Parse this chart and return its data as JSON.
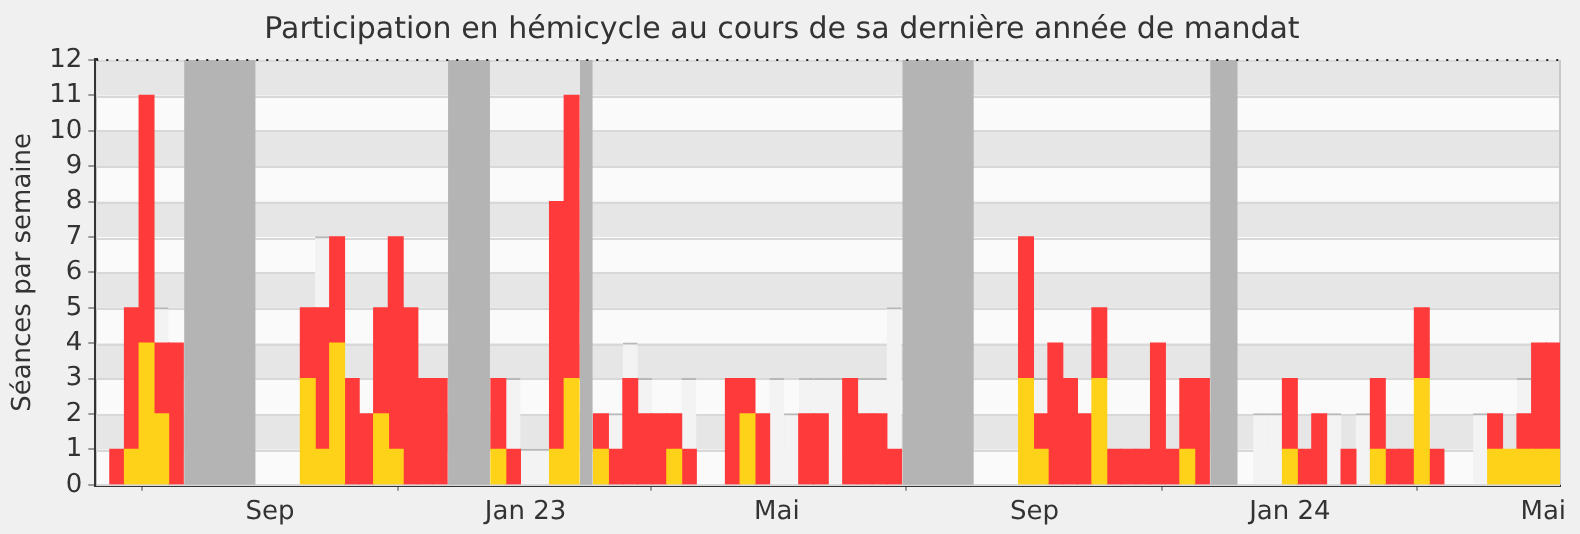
{
  "chart_data": {
    "type": "bar",
    "title": "Participation en hémicycle au cours de sa dernière année de mandat",
    "ylabel": "Séances par semaine",
    "x": [
      "2022-06-20",
      "2022-06-27",
      "2022-07-04",
      "2022-07-11",
      "2022-07-18",
      "2022-09-19",
      "2022-09-26",
      "2022-10-03",
      "2022-10-10",
      "2022-10-17",
      "2022-10-24",
      "2022-10-31",
      "2022-11-07",
      "2022-11-14",
      "2022-11-21",
      "2022-12-19",
      "2022-12-26",
      "2023-01-02",
      "2023-01-09",
      "2023-01-16",
      "2023-01-23",
      "2023-02-06",
      "2023-02-13",
      "2023-02-20",
      "2023-02-27",
      "2023-03-06",
      "2023-03-13",
      "2023-03-20",
      "2023-04-10",
      "2023-04-17",
      "2023-04-24",
      "2023-05-01",
      "2023-05-08",
      "2023-05-15",
      "2023-05-22",
      "2023-05-29",
      "2023-06-05",
      "2023-06-12",
      "2023-06-19",
      "2023-06-26",
      "2023-08-28",
      "2023-09-04",
      "2023-09-11",
      "2023-09-18",
      "2023-09-25",
      "2023-10-02",
      "2023-10-09",
      "2023-10-16",
      "2023-10-23",
      "2023-10-30",
      "2023-11-06",
      "2023-11-13",
      "2023-11-20",
      "2023-12-18",
      "2023-12-25",
      "2024-01-01",
      "2024-01-08",
      "2024-01-15",
      "2024-01-22",
      "2024-01-29",
      "2024-02-05",
      "2024-02-12",
      "2024-02-19",
      "2024-02-26",
      "2024-03-04",
      "2024-03-11",
      "2024-04-01",
      "2024-04-08",
      "2024-04-15",
      "2024-04-22",
      "2024-04-29",
      "2024-05-06"
    ],
    "series": [
      {
        "color": "#ffd21a",
        "values": [
          null,
          1,
          4,
          2,
          null,
          3,
          1,
          4,
          null,
          null,
          2,
          1,
          null,
          null,
          null,
          1,
          null,
          null,
          null,
          1,
          3,
          1,
          null,
          null,
          null,
          null,
          1,
          null,
          null,
          2,
          null,
          null,
          null,
          null,
          null,
          null,
          null,
          null,
          null,
          null,
          3,
          1,
          null,
          null,
          null,
          3,
          null,
          null,
          null,
          null,
          null,
          1,
          null,
          null,
          null,
          1,
          null,
          null,
          null,
          null,
          null,
          1,
          null,
          null,
          3,
          null,
          null,
          1,
          1,
          1,
          1,
          1
        ]
      },
      {
        "color": "#ff3a3a",
        "values": [
          1,
          4,
          7,
          2,
          4,
          2,
          4,
          3,
          3,
          2,
          3,
          6,
          5,
          3,
          3,
          2,
          1,
          null,
          null,
          7,
          8,
          1,
          1,
          3,
          2,
          2,
          1,
          1,
          3,
          1,
          2,
          null,
          null,
          2,
          2,
          null,
          3,
          2,
          2,
          1,
          4,
          1,
          4,
          3,
          2,
          2,
          1,
          1,
          1,
          4,
          1,
          2,
          3,
          null,
          null,
          2,
          1,
          2,
          null,
          1,
          null,
          2,
          1,
          1,
          2,
          1,
          null,
          1,
          null,
          1,
          3,
          3
        ]
      },
      {
        "color": "#f3f3f3",
        "values": [
          null,
          null,
          null,
          1,
          null,
          null,
          2,
          null,
          null,
          null,
          null,
          null,
          null,
          null,
          null,
          null,
          2,
          1,
          1,
          null,
          null,
          null,
          1,
          1,
          1,
          null,
          null,
          2,
          null,
          null,
          null,
          3,
          2,
          1,
          1,
          3,
          null,
          1,
          1,
          4,
          null,
          1,
          null,
          null,
          null,
          null,
          null,
          null,
          null,
          null,
          null,
          null,
          null,
          2,
          2,
          null,
          null,
          null,
          2,
          null,
          2,
          null,
          null,
          null,
          null,
          null,
          2,
          null,
          null,
          1,
          null,
          null
        ]
      }
    ],
    "stacked": true,
    "xlim": [
      "2022-06-10",
      "2024-05-09"
    ],
    "xticks": [
      {
        "value": "2022-09-01",
        "label": "Sep"
      },
      {
        "value": "2023-01-01",
        "label": "Jan 23"
      },
      {
        "value": "2023-05-01",
        "label": "Mai"
      },
      {
        "value": "2023-09-01",
        "label": "Sep"
      },
      {
        "value": "2024-01-01",
        "label": "Jan 24"
      },
      {
        "value": "2024-05-01",
        "label": "Mai"
      }
    ],
    "ylim": [
      0,
      12
    ],
    "yticks": [
      0,
      1,
      2,
      3,
      4,
      5,
      6,
      7,
      8,
      9,
      10,
      11,
      12
    ],
    "bands": [
      {
        "axis": "x",
        "from": "2022-07-22",
        "to": "2022-08-25",
        "color": "#b4b4b4"
      },
      {
        "axis": "x",
        "from": "2022-11-25",
        "to": "2022-12-15",
        "color": "#b4b4b4"
      },
      {
        "axis": "x",
        "from": "2023-01-27",
        "to": "2023-02-02",
        "color": "#b4b4b4"
      },
      {
        "axis": "x",
        "from": "2023-06-30",
        "to": "2023-08-03",
        "color": "#b4b4b4"
      },
      {
        "axis": "x",
        "from": "2023-11-24",
        "to": "2023-12-07",
        "color": "#b4b4b4"
      }
    ],
    "grid": "y",
    "legend": false
  }
}
